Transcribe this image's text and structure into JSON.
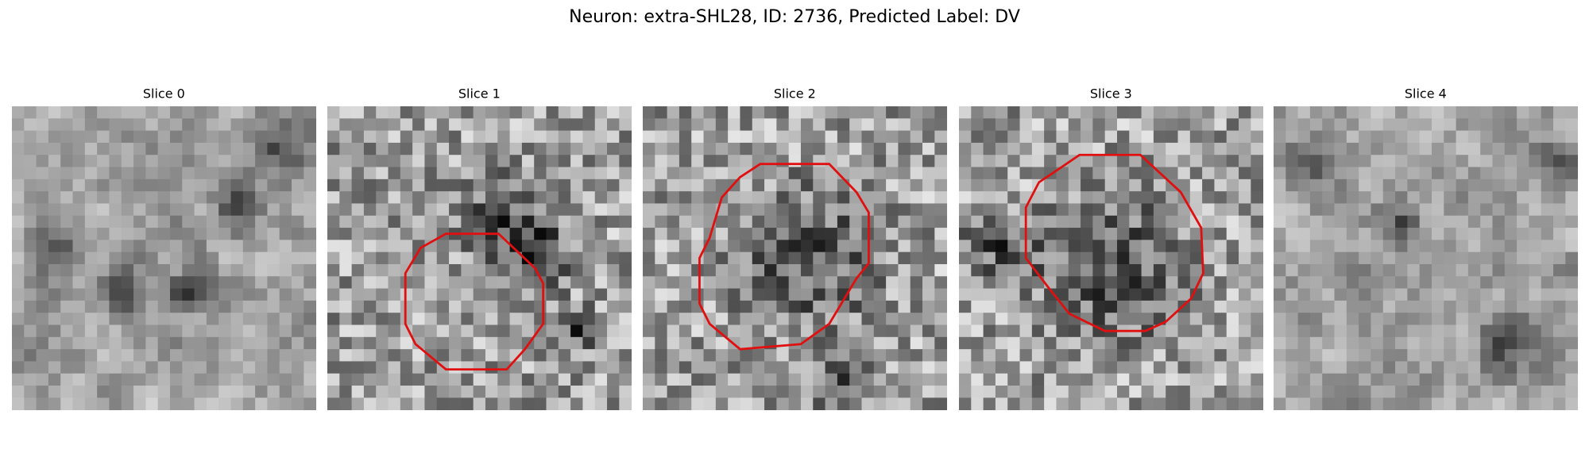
{
  "title": "Neuron: extra-SHL28, ID: 2736, Predicted Label: DV",
  "panels": [
    {
      "title": "Slice 0"
    },
    {
      "title": "Slice 1"
    },
    {
      "title": "Slice 2"
    },
    {
      "title": "Slice 3"
    },
    {
      "title": "Slice 4"
    }
  ]
}
